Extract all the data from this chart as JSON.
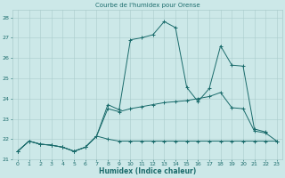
{
  "title": "Courbe de l'humidex pour Orense",
  "xlabel": "Humidex (Indice chaleur)",
  "xlim": [
    -0.5,
    23.5
  ],
  "ylim": [
    21.0,
    28.4
  ],
  "yticks": [
    21,
    22,
    23,
    24,
    25,
    26,
    27,
    28
  ],
  "xticks": [
    0,
    1,
    2,
    3,
    4,
    5,
    6,
    7,
    8,
    9,
    10,
    11,
    12,
    13,
    14,
    15,
    16,
    17,
    18,
    19,
    20,
    21,
    22,
    23
  ],
  "bg_color": "#cce8e8",
  "grid_color": "#aacccc",
  "line_color": "#1a6b6b",
  "line1": [
    [
      0,
      21.4
    ],
    [
      1,
      21.9
    ],
    [
      2,
      21.75
    ],
    [
      3,
      21.7
    ],
    [
      4,
      21.6
    ],
    [
      5,
      21.4
    ],
    [
      6,
      21.6
    ],
    [
      7,
      22.15
    ],
    [
      8,
      23.7
    ],
    [
      9,
      23.45
    ],
    [
      10,
      26.9
    ],
    [
      11,
      27.0
    ],
    [
      12,
      27.15
    ],
    [
      13,
      27.8
    ],
    [
      14,
      27.5
    ],
    [
      15,
      24.55
    ],
    [
      16,
      23.85
    ],
    [
      17,
      24.5
    ],
    [
      18,
      26.6
    ],
    [
      19,
      25.65
    ],
    [
      20,
      25.6
    ],
    [
      21,
      22.5
    ],
    [
      22,
      22.35
    ]
  ],
  "line2": [
    [
      0,
      21.4
    ],
    [
      1,
      21.9
    ],
    [
      2,
      21.75
    ],
    [
      3,
      21.7
    ],
    [
      4,
      21.6
    ],
    [
      5,
      21.4
    ],
    [
      6,
      21.6
    ],
    [
      7,
      22.15
    ],
    [
      8,
      23.5
    ],
    [
      9,
      23.35
    ],
    [
      10,
      23.5
    ],
    [
      11,
      23.6
    ],
    [
      12,
      23.7
    ],
    [
      13,
      23.8
    ],
    [
      14,
      23.85
    ],
    [
      15,
      23.9
    ],
    [
      16,
      24.0
    ],
    [
      17,
      24.1
    ],
    [
      18,
      24.3
    ],
    [
      19,
      23.55
    ],
    [
      20,
      23.5
    ],
    [
      21,
      22.4
    ],
    [
      22,
      22.3
    ],
    [
      23,
      21.9
    ]
  ],
  "line3": [
    [
      0,
      21.4
    ],
    [
      1,
      21.9
    ],
    [
      2,
      21.75
    ],
    [
      3,
      21.7
    ],
    [
      4,
      21.6
    ],
    [
      5,
      21.4
    ],
    [
      6,
      21.6
    ],
    [
      7,
      22.15
    ],
    [
      8,
      22.0
    ],
    [
      9,
      21.9
    ],
    [
      10,
      21.9
    ],
    [
      11,
      21.9
    ],
    [
      12,
      21.9
    ],
    [
      13,
      21.9
    ],
    [
      14,
      21.9
    ],
    [
      15,
      21.9
    ],
    [
      16,
      21.9
    ],
    [
      17,
      21.9
    ],
    [
      18,
      21.9
    ],
    [
      19,
      21.9
    ],
    [
      20,
      21.9
    ],
    [
      21,
      21.9
    ],
    [
      22,
      21.9
    ],
    [
      23,
      21.9
    ]
  ]
}
